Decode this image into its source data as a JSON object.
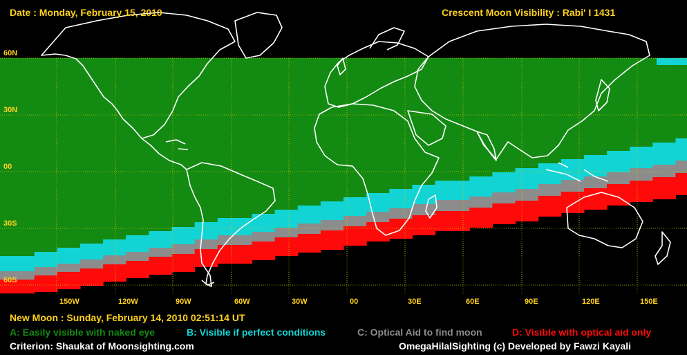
{
  "header": {
    "date": "Date : Monday, February 15, 2010",
    "title": "Crescent Moon Visibility : Rabi' I  1431"
  },
  "map": {
    "lat_labels": [
      "60N",
      "30N",
      "00",
      "30S",
      "60S"
    ],
    "lon_labels": [
      "150W",
      "120W",
      "90W",
      "60W",
      "30W",
      "00",
      "30E",
      "60E",
      "90E",
      "120E",
      "150E"
    ],
    "zone_colors": {
      "A": "#138a12",
      "B": "#13d4d4",
      "C": "#8c8c8c",
      "D": "#ff0a0a",
      "none": "#000000"
    }
  },
  "footer": {
    "new_moon": "New Moon : Sunday, February 14, 2010  02:51:14  UT",
    "legend": {
      "a": "A: Easily visible with naked eye",
      "b": "B: Visible if perfect conditions",
      "c": "C: Optical Aid to find moon",
      "d": "D: Visible with optical aid only"
    },
    "criterion": "Criterion: Shaukat of Moonsighting.com",
    "credit": "OmegaHilalSighting  (c)  Developed by Fawzi Kayali"
  }
}
